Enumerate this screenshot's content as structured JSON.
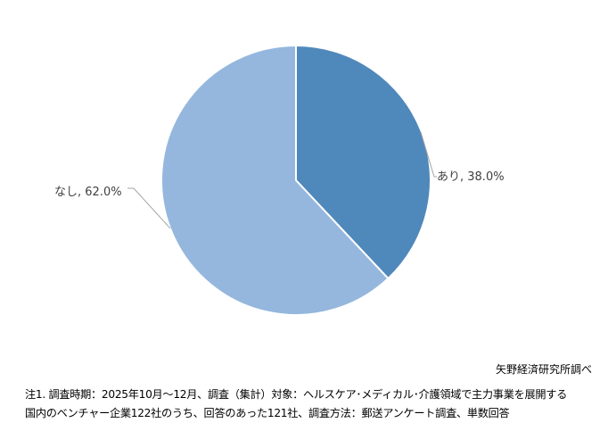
{
  "chart_data": {
    "type": "pie",
    "title": "",
    "categories": [
      "あり",
      "なし"
    ],
    "values": [
      38.0,
      62.0
    ],
    "unit": "%",
    "labels": [
      "あり, 38.0%",
      "なし, 62.0%"
    ],
    "colors": [
      "#4F88BB",
      "#95B7DE"
    ],
    "start_angle": "12 o'clock, clockwise",
    "legend": "none (data labels with leader lines)"
  },
  "source": "矢野経済研究所調べ",
  "notes": {
    "line1": "注1. 調査時期：2025年10月～12月、調査（集計）対象：ヘルスケア･メディカル･介護領域で主力事業を展開する",
    "line2": "国内のベンチャー企業122社のうち、回答のあった121社、調査方法：郵送アンケート調査、単数回答"
  }
}
